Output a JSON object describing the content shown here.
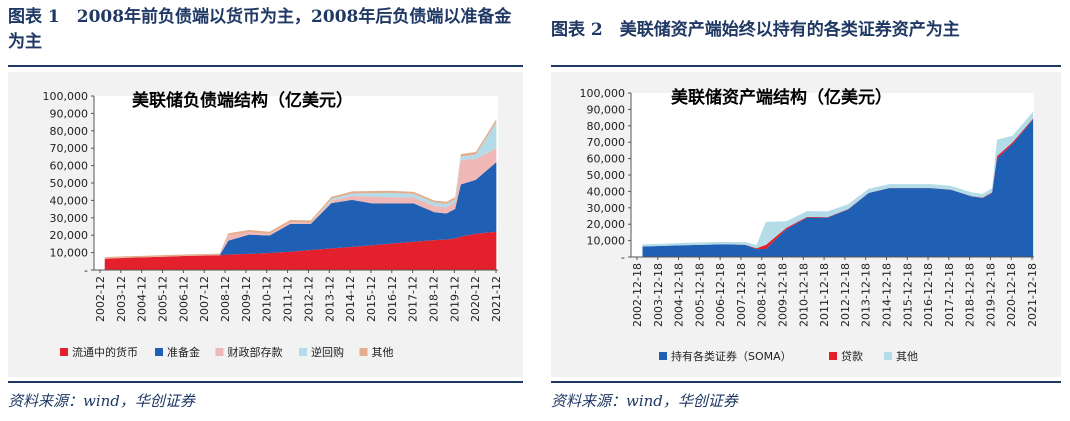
{
  "figures": [
    {
      "title": "图表 1　2008年前负债端以货币为主，2008年后负债端以准备金为主"
    },
    {
      "title": "图表 2　美联储资产端始终以持有的各类证券资产为主"
    }
  ],
  "source": "资料来源：wind，华创证券",
  "colors": {
    "currency": "#e3202c",
    "reserves": "#1f5fb4",
    "treasury_account": "#efb7b5",
    "reverse_repo": "#b4dbe8",
    "others_liab": "#e3ad8e",
    "soma": "#1f5fb4",
    "loans": "#e3202c",
    "others_asset": "#b4dbe8",
    "rule": "#1f3864"
  },
  "chart_data": [
    {
      "type": "area",
      "stacked": true,
      "title": "美联储负债端结构（亿美元）",
      "xlabel": "",
      "ylabel": "",
      "ylim": [
        0,
        100000
      ],
      "yticks": [
        "-",
        "10,000",
        "20,000",
        "30,000",
        "40,000",
        "50,000",
        "60,000",
        "70,000",
        "80,000",
        "90,000",
        "100,000"
      ],
      "categories": [
        "2002-12",
        "2003-12",
        "2004-12",
        "2005-12",
        "2006-12",
        "2007-12",
        "2008-12",
        "2009-12",
        "2010-12",
        "2011-12",
        "2012-12",
        "2013-12",
        "2014-12",
        "2015-12",
        "2016-12",
        "2017-12",
        "2018-12",
        "2019-12",
        "2020-12",
        "2021-12"
      ],
      "x": [
        2002.92,
        2003.92,
        2004.92,
        2005.92,
        2006.92,
        2007.92,
        2008.5,
        2008.92,
        2009.92,
        2010.92,
        2011.92,
        2012.92,
        2013.92,
        2014.92,
        2015.92,
        2016.92,
        2017.92,
        2018.92,
        2019.5,
        2019.92,
        2020.2,
        2020.92,
        2021.92
      ],
      "series": [
        {
          "name": "流通中的货币",
          "values": [
            6500,
            7000,
            7300,
            7700,
            8100,
            8300,
            8500,
            8900,
            9300,
            9800,
            10500,
            11500,
            12400,
            13300,
            14200,
            15300,
            16200,
            17200,
            17500,
            18100,
            19200,
            20800,
            22000
          ]
        },
        {
          "name": "准备金",
          "values": [
            0,
            0,
            0,
            0,
            0,
            0,
            0,
            8000,
            11000,
            10000,
            16000,
            15000,
            26000,
            27000,
            24000,
            23000,
            22000,
            16000,
            15000,
            17000,
            30000,
            31000,
            40000
          ]
        },
        {
          "name": "财政部存款",
          "values": [
            100,
            100,
            100,
            100,
            100,
            100,
            100,
            3000,
            1500,
            1000,
            1000,
            800,
            1500,
            2200,
            4000,
            3500,
            3500,
            3500,
            3500,
            4000,
            14000,
            12000,
            8000
          ]
        },
        {
          "name": "逆回购",
          "values": [
            0,
            0,
            0,
            0,
            0,
            0,
            0,
            0,
            0,
            0,
            0,
            0,
            1000,
            1500,
            2000,
            2500,
            2000,
            2000,
            2000,
            1500,
            2000,
            2500,
            15000
          ]
        },
        {
          "name": "其他",
          "values": [
            800,
            800,
            800,
            800,
            800,
            800,
            800,
            1200,
            1200,
            1200,
            1200,
            1200,
            1200,
            1200,
            1200,
            1200,
            1200,
            1200,
            1200,
            1200,
            1500,
            1500,
            1700
          ]
        }
      ]
    },
    {
      "type": "area",
      "stacked": true,
      "title": "美联储资产端结构（亿美元）",
      "xlabel": "",
      "ylabel": "",
      "ylim": [
        0,
        100000
      ],
      "yticks": [
        "-",
        "10,000",
        "20,000",
        "30,000",
        "40,000",
        "50,000",
        "60,000",
        "70,000",
        "80,000",
        "90,000",
        "100,000"
      ],
      "categories": [
        "2002-12-18",
        "2003-12-18",
        "2004-12-18",
        "2005-12-18",
        "2006-12-18",
        "2007-12-18",
        "2008-12-18",
        "2009-12-18",
        "2010-12-18",
        "2011-12-18",
        "2012-12-18",
        "2013-12-18",
        "2014-12-18",
        "2015-12-18",
        "2016-12-18",
        "2017-12-18",
        "2018-12-18",
        "2019-12-18",
        "2020-12-18",
        "2021-12-18"
      ],
      "x": [
        2002.96,
        2003.96,
        2004.96,
        2005.96,
        2006.96,
        2007.96,
        2008.5,
        2008.96,
        2009.96,
        2010.96,
        2011.96,
        2012.96,
        2013.96,
        2014.96,
        2015.96,
        2016.96,
        2017.96,
        2018.96,
        2019.5,
        2019.96,
        2020.2,
        2020.96,
        2021.96
      ],
      "series": [
        {
          "name": "持有各类证券（SOMA）",
          "values": [
            6400,
            6800,
            7200,
            7500,
            7800,
            7400,
            4800,
            4900,
            17000,
            24000,
            24000,
            29000,
            39000,
            42000,
            42000,
            42000,
            41000,
            37000,
            36000,
            39000,
            60000,
            69000,
            84000
          ]
        },
        {
          "name": "贷款",
          "values": [
            0,
            0,
            0,
            0,
            0,
            100,
            500,
            2500,
            800,
            500,
            300,
            200,
            100,
            100,
            100,
            100,
            100,
            100,
            200,
            400,
            1500,
            1000,
            500
          ]
        },
        {
          "name": "其他",
          "values": [
            1300,
            1300,
            1400,
            1400,
            1400,
            1600,
            2000,
            14000,
            4000,
            3500,
            3500,
            3000,
            2500,
            2300,
            2300,
            2300,
            2300,
            2300,
            2300,
            2500,
            10000,
            4000,
            4200
          ]
        }
      ]
    }
  ]
}
